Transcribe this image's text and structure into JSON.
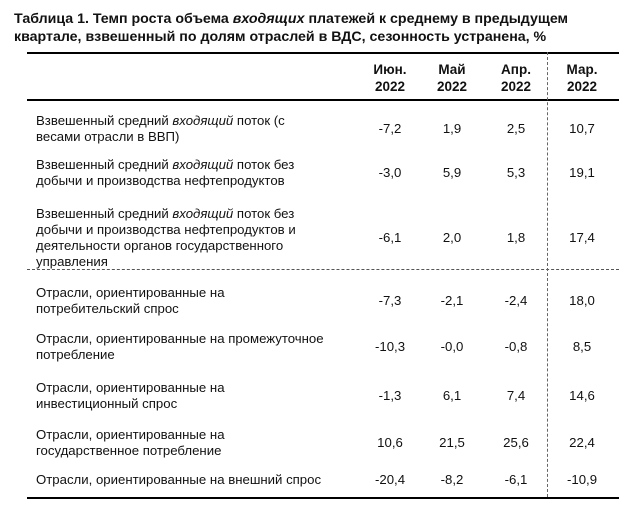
{
  "title": {
    "prefix": "Таблица 1. Темп роста объема ",
    "emph": "входящих",
    "suffix": " платежей к среднему в предыдущем квартале, взвешенный по долям отраслей в ВДС, сезонность устранена, %"
  },
  "columns": [
    {
      "month": "Июн.",
      "year": "2022"
    },
    {
      "month": "Май",
      "year": "2022"
    },
    {
      "month": "Апр.",
      "year": "2022"
    },
    {
      "month": "Мар.",
      "year": "2022"
    }
  ],
  "rows": [
    {
      "pre": "Взвешенный средний ",
      "emph": "входящий",
      "post": " поток (с весами отрасли в ВВП)",
      "values": [
        "-7,2",
        "1,9",
        "2,5",
        "10,7"
      ]
    },
    {
      "pre": "Взвешенный средний ",
      "emph": "входящий",
      "post": " поток без добычи и производства нефтепродуктов",
      "values": [
        "-3,0",
        "5,9",
        "5,3",
        "19,1"
      ]
    },
    {
      "pre": "Взвешенный средний ",
      "emph": "входящий",
      "post": " поток без добычи и производства нефтепродуктов и деятельности органов государственного управления",
      "values": [
        "-6,1",
        "2,0",
        "1,8",
        "17,4"
      ]
    },
    {
      "pre": "Отрасли, ориентированные на потребительский спрос",
      "emph": "",
      "post": "",
      "values": [
        "-7,3",
        "-2,1",
        "-2,4",
        "18,0"
      ]
    },
    {
      "pre": "Отрасли, ориентированные на промежуточное потребление",
      "emph": "",
      "post": "",
      "values": [
        "-10,3",
        "-0,0",
        "-0,8",
        "8,5"
      ]
    },
    {
      "pre": "Отрасли, ориентированные на инвестиционный спрос",
      "emph": "",
      "post": "",
      "values": [
        "-1,3",
        "6,1",
        "7,4",
        "14,6"
      ]
    },
    {
      "pre": "Отрасли, ориентированные на государственное потребление",
      "emph": "",
      "post": "",
      "values": [
        "10,6",
        "21,5",
        "25,6",
        "22,4"
      ]
    },
    {
      "pre": "Отрасли, ориентированные на внешний спрос",
      "emph": "",
      "post": "",
      "values": [
        "-20,4",
        "-8,2",
        "-6,1",
        "-10,9"
      ]
    }
  ]
}
